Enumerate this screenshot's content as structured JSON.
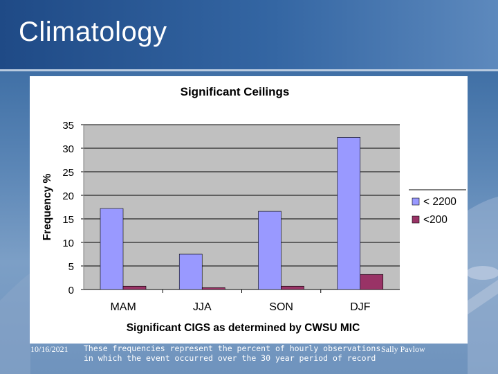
{
  "slide": {
    "title": "Climatology"
  },
  "footer": {
    "date": "10/16/2021",
    "note": "These frequencies represent the percent of hourly observations in which the event occurred over the 30 year period of record",
    "author": "Sally Pavlow"
  },
  "colors": {
    "series1": "#9999ff",
    "series2": "#993366",
    "plot_bg": "#c0c0c0"
  },
  "chart_data": {
    "type": "bar",
    "title": "Significant Ceilings",
    "xlabel": "Significant CIGS as determined by CWSU MIC",
    "ylabel": "Frequency %",
    "categories": [
      "MAM",
      "JJA",
      "SON",
      "DJF"
    ],
    "ylim": [
      0,
      35
    ],
    "yticks": [
      "0",
      "5",
      "10",
      "15",
      "20",
      "25",
      "30",
      "35"
    ],
    "grid": true,
    "legend_position": "right",
    "series": [
      {
        "name": "< 2200",
        "values": [
          17.2,
          7.5,
          16.6,
          32.3
        ],
        "color": "#9999ff"
      },
      {
        "name": "<200",
        "values": [
          0.7,
          0.4,
          0.7,
          3.2
        ],
        "color": "#993366"
      }
    ]
  }
}
